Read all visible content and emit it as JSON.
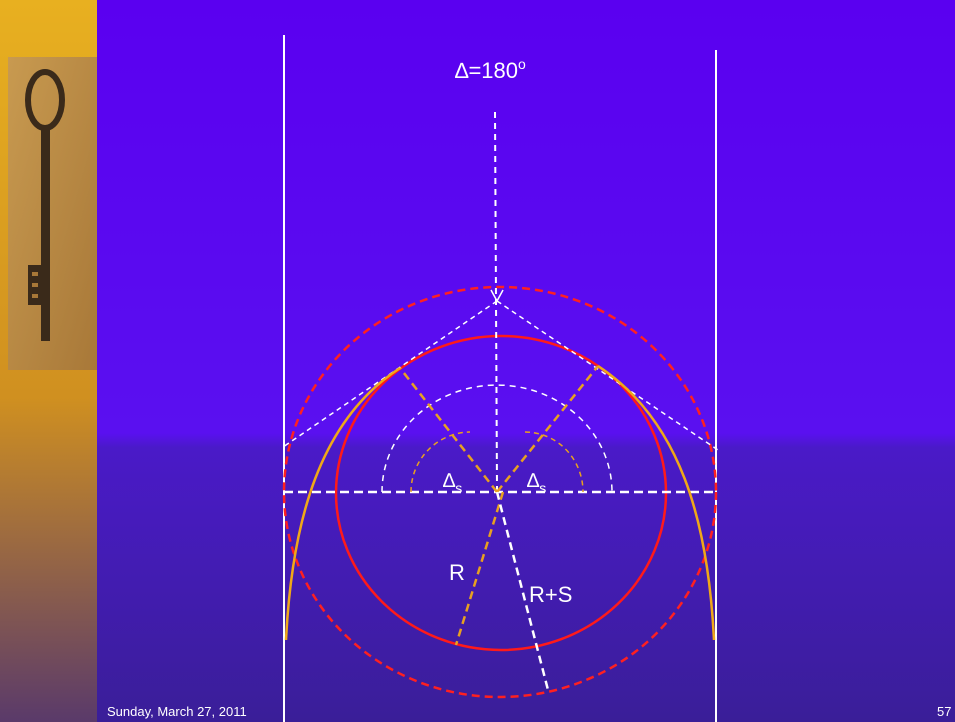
{
  "diagram": {
    "angle_label": {
      "text": "∆=180",
      "superscript": "o"
    },
    "deflection_labels": [
      {
        "text": "∆",
        "subscript": "s"
      },
      {
        "text": "∆",
        "subscript": "s"
      }
    ],
    "radius_labels": [
      "R",
      "R+S"
    ]
  },
  "footer": {
    "date": "Sunday, March 27, 2011",
    "page": "57"
  }
}
